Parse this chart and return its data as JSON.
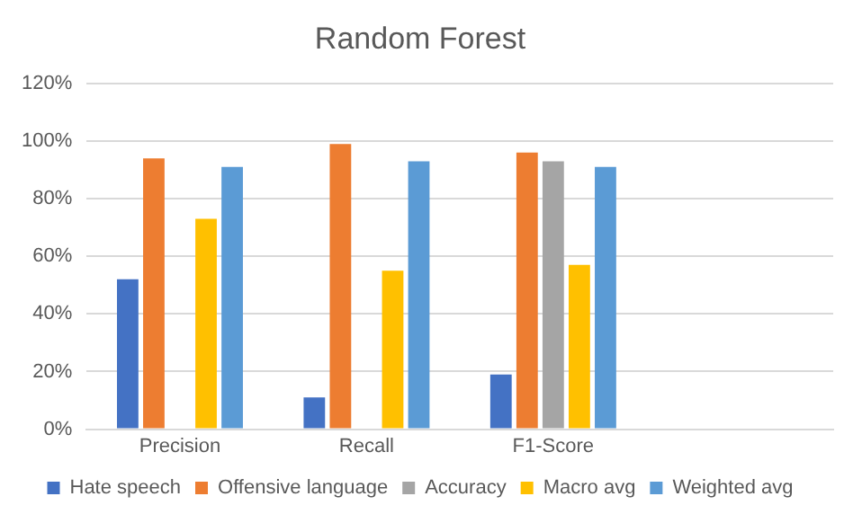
{
  "chart_data": {
    "type": "bar",
    "title": "Random Forest",
    "categories": [
      "Precision",
      "Recall",
      "F1-Score",
      null
    ],
    "series": [
      {
        "name": "Hate speech",
        "color": "#4472c4",
        "values": [
          52,
          11,
          19,
          null
        ]
      },
      {
        "name": "Offensive language",
        "color": "#ed7d31",
        "values": [
          94,
          99,
          96,
          null
        ]
      },
      {
        "name": "Accuracy",
        "color": "#a5a5a5",
        "values": [
          null,
          null,
          93,
          null
        ]
      },
      {
        "name": "Macro avg",
        "color": "#ffc000",
        "values": [
          73,
          55,
          57,
          null
        ]
      },
      {
        "name": "Weighted avg",
        "color": "#5b9bd5",
        "values": [
          91,
          93,
          91,
          null
        ]
      }
    ],
    "ylim": [
      0,
      120
    ],
    "yticks": [
      {
        "value": 0,
        "label": "0%"
      },
      {
        "value": 20,
        "label": "20%"
      },
      {
        "value": 40,
        "label": "40%"
      },
      {
        "value": 60,
        "label": "60%"
      },
      {
        "value": 80,
        "label": "80%"
      },
      {
        "value": 100,
        "label": "100%"
      },
      {
        "value": 120,
        "label": "120%"
      }
    ],
    "grid": "y",
    "legend": "bottom"
  }
}
